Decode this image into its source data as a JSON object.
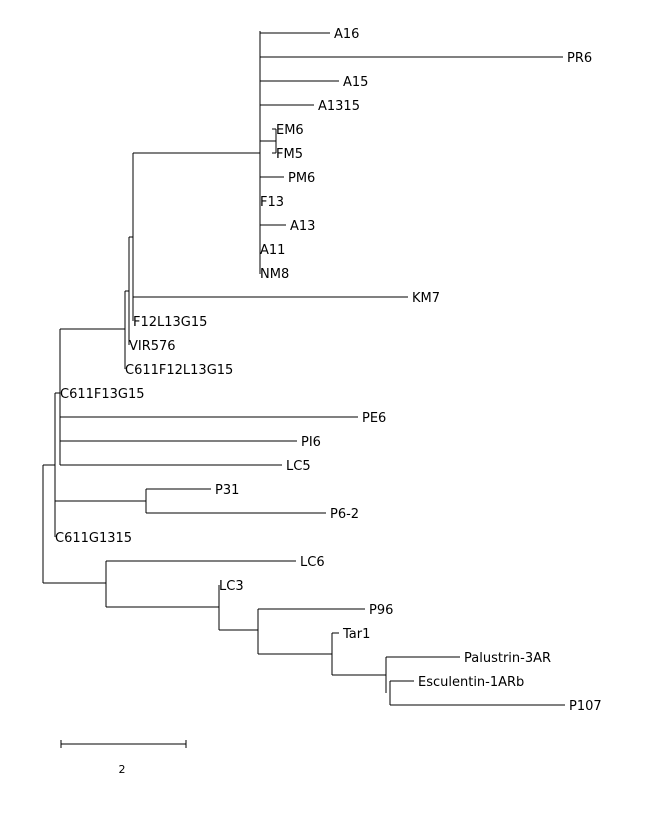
{
  "tree": {
    "leaves": [
      {
        "id": "a16",
        "label": "A16"
      },
      {
        "id": "pr6",
        "label": "PR6"
      },
      {
        "id": "a15",
        "label": "A15"
      },
      {
        "id": "a1315",
        "label": "A1315"
      },
      {
        "id": "em6",
        "label": "EM6"
      },
      {
        "id": "fm5",
        "label": "FM5"
      },
      {
        "id": "pm6",
        "label": "PM6"
      },
      {
        "id": "f13",
        "label": "F13"
      },
      {
        "id": "a13",
        "label": "A13"
      },
      {
        "id": "a11",
        "label": "A11"
      },
      {
        "id": "nm8",
        "label": "NM8"
      },
      {
        "id": "km7",
        "label": "KM7"
      },
      {
        "id": "f12l13g15",
        "label": "F12L13G15"
      },
      {
        "id": "vir576",
        "label": "VIR576"
      },
      {
        "id": "c611f12l13g15",
        "label": "C611F12L13G15"
      },
      {
        "id": "c611f13g15",
        "label": "C611F13G15"
      },
      {
        "id": "pe6",
        "label": "PE6"
      },
      {
        "id": "pi6",
        "label": "PI6"
      },
      {
        "id": "lc5",
        "label": "LC5"
      },
      {
        "id": "p31",
        "label": "P31"
      },
      {
        "id": "p6-2",
        "label": "P6-2"
      },
      {
        "id": "c611g1315",
        "label": "C611G1315"
      },
      {
        "id": "lc6",
        "label": "LC6"
      },
      {
        "id": "lc3",
        "label": "LC3"
      },
      {
        "id": "p96",
        "label": "P96"
      },
      {
        "id": "tar1",
        "label": "Tar1"
      },
      {
        "id": "palustrin-3ar",
        "label": "Palustrin-3AR"
      },
      {
        "id": "esculentin-1arb",
        "label": "Esculentin-1ARb"
      },
      {
        "id": "p107",
        "label": "P107"
      }
    ]
  },
  "scale_bar": {
    "label": "2",
    "length": 2
  }
}
